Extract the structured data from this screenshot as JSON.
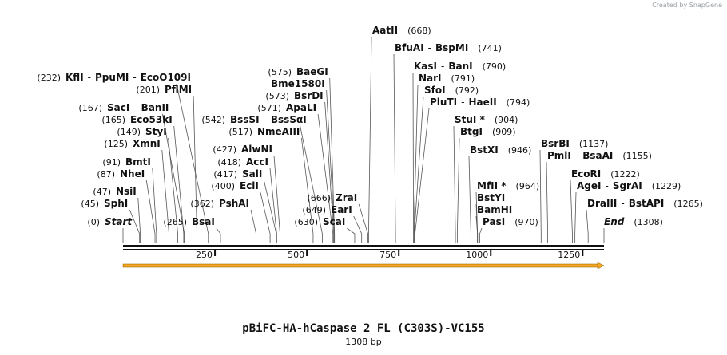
{
  "credit": "Created by SnapGene",
  "title": "pBiFC-HA-hCaspase 2 FL (C303S)-VC155",
  "length_label": "1308 bp",
  "colors": {
    "backbone": "#111111",
    "feature": "#f5a623",
    "leader": "#555555"
  },
  "scale": {
    "total_bp": 1308,
    "ticks": [
      250,
      500,
      750,
      1000,
      1250
    ]
  },
  "sites": [
    {
      "names": [
        "Start"
      ],
      "pos": 0,
      "pos_label": "(0)",
      "terminal": true
    },
    {
      "names": [
        "SphI"
      ],
      "pos": 45,
      "pos_label": "(45)"
    },
    {
      "names": [
        "NsiI"
      ],
      "pos": 47,
      "pos_label": "(47)"
    },
    {
      "names": [
        "NheI"
      ],
      "pos": 87,
      "pos_label": "(87)"
    },
    {
      "names": [
        "BmtI"
      ],
      "pos": 91,
      "pos_label": "(91)"
    },
    {
      "names": [
        "XmnI"
      ],
      "pos": 125,
      "pos_label": "(125)"
    },
    {
      "names": [
        "StyI"
      ],
      "pos": 149,
      "pos_label": "(149)"
    },
    {
      "names": [
        "Eco53kI"
      ],
      "pos": 165,
      "pos_label": "(165)"
    },
    {
      "names": [
        "SacI",
        "BanII"
      ],
      "pos": 167,
      "pos_label": "(167)"
    },
    {
      "names": [
        "PflMI"
      ],
      "pos": 201,
      "pos_label": "(201)"
    },
    {
      "names": [
        "KflI",
        "PpuMI",
        "EcoO109I"
      ],
      "pos": 232,
      "pos_label": "(232)"
    },
    {
      "names": [
        "BsaI"
      ],
      "pos": 265,
      "pos_label": "(265)"
    },
    {
      "names": [
        "PshAI"
      ],
      "pos": 362,
      "pos_label": "(362)"
    },
    {
      "names": [
        "EciI"
      ],
      "pos": 400,
      "pos_label": "(400)"
    },
    {
      "names": [
        "SalI"
      ],
      "pos": 417,
      "pos_label": "(417)"
    },
    {
      "names": [
        "AccI"
      ],
      "pos": 418,
      "pos_label": "(418)"
    },
    {
      "names": [
        "AlwNI"
      ],
      "pos": 427,
      "pos_label": "(427)"
    },
    {
      "names": [
        "NmeAIII"
      ],
      "pos": 517,
      "pos_label": "(517)"
    },
    {
      "names": [
        "BssSI",
        "BssSαI"
      ],
      "pos": 542,
      "pos_label": "(542)"
    },
    {
      "names": [
        "ApaLI"
      ],
      "pos": 571,
      "pos_label": "(571)"
    },
    {
      "names": [
        "BsrDI"
      ],
      "pos": 573,
      "pos_label": "(573)"
    },
    {
      "names": [
        "Bme1580I"
      ],
      "pos": 575,
      "pos_label": ""
    },
    {
      "names": [
        "BaeGI"
      ],
      "pos": 575,
      "pos_label": "(575)"
    },
    {
      "names": [
        "ScaI"
      ],
      "pos": 630,
      "pos_label": "(630)"
    },
    {
      "names": [
        "EarI"
      ],
      "pos": 649,
      "pos_label": "(649)"
    },
    {
      "names": [
        "ZraI"
      ],
      "pos": 666,
      "pos_label": "(666)"
    },
    {
      "names": [
        "AatII"
      ],
      "pos": 668,
      "pos_label": "(668)"
    },
    {
      "names": [
        "BfuAI",
        "BspMI"
      ],
      "pos": 741,
      "pos_label": "(741)"
    },
    {
      "names": [
        "KasI",
        "BanI"
      ],
      "pos": 790,
      "pos_label": "(790)"
    },
    {
      "names": [
        "NarI"
      ],
      "pos": 791,
      "pos_label": "(791)"
    },
    {
      "names": [
        "SfoI"
      ],
      "pos": 792,
      "pos_label": "(792)"
    },
    {
      "names": [
        "PluTI",
        "HaeII"
      ],
      "pos": 794,
      "pos_label": "(794)"
    },
    {
      "names": [
        "StuI *"
      ],
      "pos": 904,
      "pos_label": "(904)"
    },
    {
      "names": [
        "BtgI"
      ],
      "pos": 909,
      "pos_label": "(909)"
    },
    {
      "names": [
        "BstXI"
      ],
      "pos": 946,
      "pos_label": "(946)"
    },
    {
      "names": [
        "MfII *"
      ],
      "pos": 964,
      "pos_label": "(964)"
    },
    {
      "names": [
        "BstYI"
      ],
      "pos": 964,
      "pos_label": ""
    },
    {
      "names": [
        "BamHI"
      ],
      "pos": 964,
      "pos_label": ""
    },
    {
      "names": [
        "PasI"
      ],
      "pos": 970,
      "pos_label": "(970)"
    },
    {
      "names": [
        "BsrBI"
      ],
      "pos": 1137,
      "pos_label": "(1137)"
    },
    {
      "names": [
        "PmlI",
        "BsaAI"
      ],
      "pos": 1155,
      "pos_label": "(1155)"
    },
    {
      "names": [
        "EcoRI"
      ],
      "pos": 1222,
      "pos_label": "(1222)"
    },
    {
      "names": [
        "AgeI",
        "SgrAI"
      ],
      "pos": 1229,
      "pos_label": "(1229)"
    },
    {
      "names": [
        "DraIII",
        "BstAPI"
      ],
      "pos": 1265,
      "pos_label": "(1265)"
    },
    {
      "names": [
        "End"
      ],
      "pos": 1308,
      "pos_label": "(1308)",
      "terminal": true
    }
  ]
}
